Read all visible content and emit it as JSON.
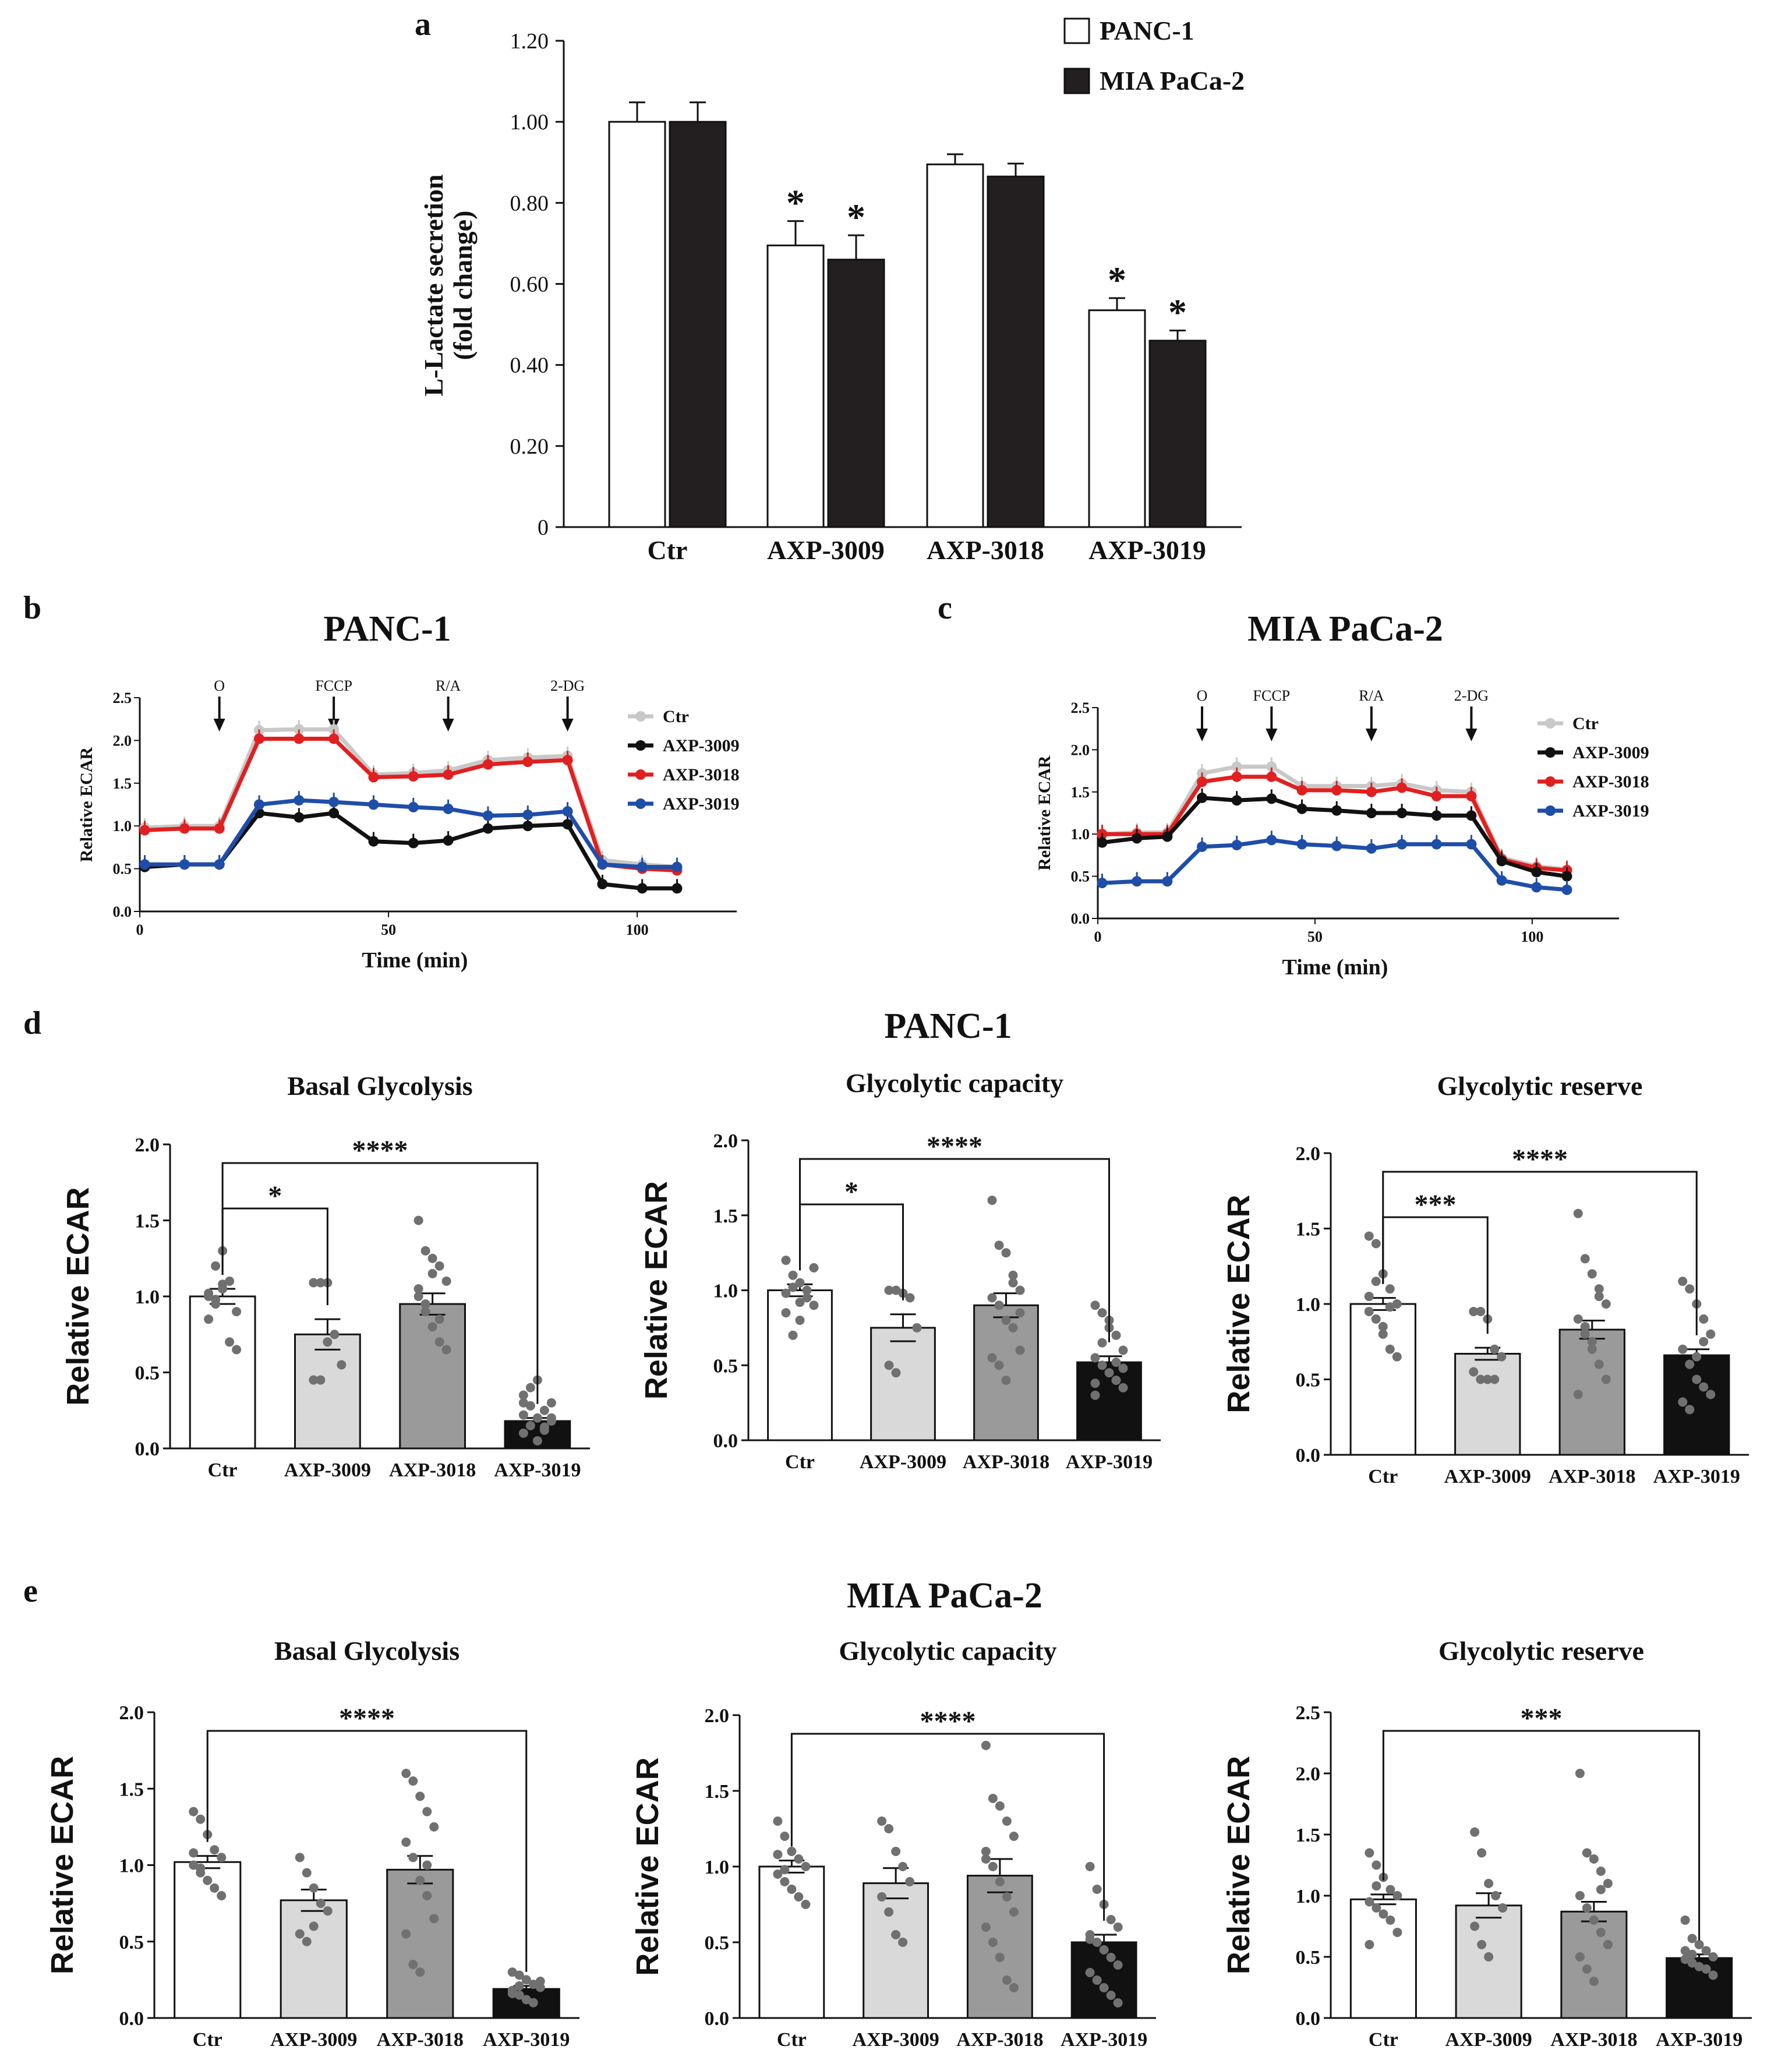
{
  "colors": {
    "white_bar": "#ffffff",
    "dark_bar": "#231f20",
    "ctr_line": "#c8c8c8",
    "axp3009_line": "#111111",
    "axp3018_line": "#e02020",
    "axp3019_line": "#1f4ea8",
    "light_grey": "#d9d9d9",
    "mid_grey": "#9a9a9a",
    "black": "#111111",
    "dot": "#707070"
  },
  "panel_letters": {
    "a": "a",
    "b": "b",
    "c": "c",
    "d": "d",
    "e": "e"
  },
  "chart_data": [
    {
      "id": "a",
      "type": "bar",
      "title": "",
      "ylabel": "L-Lactate secretion\n(fold change)",
      "ylabel_line1": "L-Lactate secretion",
      "ylabel_line2": "(fold change)",
      "ylim": [
        0,
        1.2
      ],
      "yticks": [
        "0",
        "0.20",
        "0.40",
        "0.60",
        "0.80",
        "1.00",
        "1.20"
      ],
      "categories": [
        "Ctr",
        "AXP-3009",
        "AXP-3018",
        "AXP-3019"
      ],
      "series": [
        {
          "name": "PANC-1",
          "values": [
            1.0,
            0.695,
            0.895,
            0.535
          ],
          "errors": [
            0.048,
            0.06,
            0.025,
            0.03
          ],
          "significant": [
            false,
            true,
            false,
            true
          ]
        },
        {
          "name": "MIA PaCa-2",
          "values": [
            1.0,
            0.66,
            0.865,
            0.46
          ],
          "errors": [
            0.048,
            0.06,
            0.032,
            0.025
          ],
          "significant": [
            false,
            true,
            false,
            true
          ]
        }
      ],
      "sig_symbol": "*",
      "legend_position": "top-right"
    },
    {
      "id": "b",
      "type": "line",
      "title": "PANC-1",
      "xlabel": "Time (min)",
      "ylabel": "Relative ECAR",
      "xlim": [
        0,
        120
      ],
      "ylim": [
        0,
        2.5
      ],
      "xticks": [
        "0",
        "50",
        "100"
      ],
      "yticks": [
        "0.0",
        "0.5",
        "1.0",
        "1.5",
        "2.0",
        "2.5"
      ],
      "injections": [
        {
          "label": "O",
          "x": 16
        },
        {
          "label": "FCCP",
          "x": 39
        },
        {
          "label": "R/A",
          "x": 62
        },
        {
          "label": "2-DG",
          "x": 86
        }
      ],
      "x": [
        1,
        9,
        16,
        24,
        32,
        39,
        47,
        55,
        62,
        70,
        78,
        86,
        93,
        101,
        108
      ],
      "series": [
        {
          "name": "Ctr",
          "values": [
            0.98,
            1.0,
            1.0,
            2.12,
            2.13,
            2.13,
            1.6,
            1.62,
            1.65,
            1.77,
            1.8,
            1.82,
            0.6,
            0.55,
            0.52
          ]
        },
        {
          "name": "AXP-3009",
          "values": [
            0.52,
            0.55,
            0.55,
            1.15,
            1.1,
            1.15,
            0.82,
            0.8,
            0.83,
            0.97,
            1.0,
            1.02,
            0.32,
            0.27,
            0.27
          ]
        },
        {
          "name": "AXP-3018",
          "values": [
            0.95,
            0.97,
            0.97,
            2.02,
            2.02,
            2.02,
            1.57,
            1.58,
            1.6,
            1.72,
            1.75,
            1.77,
            0.55,
            0.5,
            0.48
          ]
        },
        {
          "name": "AXP-3019",
          "values": [
            0.55,
            0.55,
            0.55,
            1.25,
            1.3,
            1.28,
            1.25,
            1.22,
            1.2,
            1.12,
            1.13,
            1.17,
            0.55,
            0.52,
            0.52
          ]
        }
      ],
      "legend_position": "right"
    },
    {
      "id": "c",
      "type": "line",
      "title": "MIA PaCa-2",
      "xlabel": "Time (min)",
      "ylabel": "Relative ECAR",
      "xlim": [
        0,
        120
      ],
      "ylim": [
        0,
        2.5
      ],
      "xticks": [
        "0",
        "50",
        "100"
      ],
      "yticks": [
        "0.0",
        "0.5",
        "1.0",
        "1.5",
        "2.0",
        "2.5"
      ],
      "injections": [
        {
          "label": "O",
          "x": 24
        },
        {
          "label": "FCCP",
          "x": 40
        },
        {
          "label": "R/A",
          "x": 63
        },
        {
          "label": "2-DG",
          "x": 86
        }
      ],
      "x": [
        1,
        9,
        16,
        24,
        32,
        40,
        47,
        55,
        63,
        70,
        78,
        86,
        93,
        101,
        108
      ],
      "series": [
        {
          "name": "Ctr",
          "values": [
            1.0,
            1.02,
            1.02,
            1.72,
            1.8,
            1.8,
            1.57,
            1.57,
            1.57,
            1.6,
            1.52,
            1.5,
            0.72,
            0.62,
            0.58
          ]
        },
        {
          "name": "AXP-3009",
          "values": [
            0.9,
            0.95,
            0.97,
            1.43,
            1.4,
            1.42,
            1.3,
            1.28,
            1.25,
            1.25,
            1.22,
            1.22,
            0.68,
            0.55,
            0.5
          ]
        },
        {
          "name": "AXP-3018",
          "values": [
            1.0,
            1.0,
            1.0,
            1.62,
            1.68,
            1.68,
            1.52,
            1.52,
            1.5,
            1.55,
            1.45,
            1.45,
            0.7,
            0.6,
            0.57
          ]
        },
        {
          "name": "AXP-3019",
          "values": [
            0.42,
            0.44,
            0.44,
            0.85,
            0.87,
            0.93,
            0.88,
            0.86,
            0.83,
            0.88,
            0.88,
            0.88,
            0.45,
            0.37,
            0.34
          ]
        }
      ],
      "legend_position": "right"
    },
    {
      "id": "d1",
      "type": "bar",
      "title": "Basal Glycolysis",
      "ylabel": "Relative ECAR",
      "ylim": [
        0,
        2.0
      ],
      "yticks": [
        "0.0",
        "0.5",
        "1.0",
        "1.5",
        "2.0"
      ],
      "categories": [
        "Ctr",
        "AXP-3009",
        "AXP-3018",
        "AXP-3019"
      ],
      "values": [
        1.0,
        0.75,
        0.95,
        0.18
      ],
      "errors": [
        0.05,
        0.1,
        0.07,
        0.02
      ],
      "points": [
        [
          1.0,
          0.95,
          1.05,
          1.1,
          0.9,
          0.85,
          1.2,
          1.3,
          0.7,
          0.65,
          1.02,
          0.98,
          1.08
        ],
        [
          1.09,
          1.09,
          1.09,
          0.75,
          0.55,
          0.45,
          0.45,
          0.7
        ],
        [
          1.5,
          1.3,
          1.25,
          1.2,
          1.1,
          1.0,
          0.9,
          0.8,
          0.7,
          0.65,
          1.05,
          0.95,
          1.15,
          0.85
        ],
        [
          0.1,
          0.15,
          0.2,
          0.25,
          0.3,
          0.35,
          0.4,
          0.45,
          0.12,
          0.18,
          0.22,
          0.28,
          0.05,
          0.14,
          0.2,
          0.3
        ]
      ],
      "significance": [
        {
          "from": 0,
          "to": 1,
          "label": "*"
        },
        {
          "from": 0,
          "to": 3,
          "label": "****"
        }
      ]
    },
    {
      "id": "d2",
      "type": "bar",
      "title": "Glycolytic capacity",
      "ylabel": "Relative ECAR",
      "ylim": [
        0,
        2.0
      ],
      "yticks": [
        "0.0",
        "0.5",
        "1.0",
        "1.5",
        "2.0"
      ],
      "categories": [
        "Ctr",
        "AXP-3009",
        "AXP-3018",
        "AXP-3019"
      ],
      "values": [
        1.0,
        0.75,
        0.9,
        0.52
      ],
      "errors": [
        0.04,
        0.09,
        0.08,
        0.04
      ],
      "points": [
        [
          1.2,
          1.1,
          1.05,
          0.95,
          0.9,
          0.85,
          0.7,
          0.8,
          1.0,
          1.15,
          0.98,
          1.02,
          0.92
        ],
        [
          1.0,
          1.0,
          0.98,
          0.95,
          0.75,
          0.5,
          0.45
        ],
        [
          1.6,
          1.3,
          1.25,
          1.1,
          1.0,
          0.95,
          0.9,
          0.8,
          0.75,
          0.6,
          0.55,
          0.5,
          0.4,
          1.05,
          0.85
        ],
        [
          0.9,
          0.85,
          0.8,
          0.7,
          0.6,
          0.55,
          0.5,
          0.45,
          0.4,
          0.35,
          0.3,
          0.65,
          0.75,
          0.52,
          0.48,
          0.38
        ]
      ],
      "significance": [
        {
          "from": 0,
          "to": 1,
          "label": "*"
        },
        {
          "from": 0,
          "to": 3,
          "label": "****"
        }
      ]
    },
    {
      "id": "d3",
      "type": "bar",
      "title": "Glycolytic reserve",
      "ylabel": "Relative ECAR",
      "ylim": [
        0,
        2.0
      ],
      "yticks": [
        "0.0",
        "0.5",
        "1.0",
        "1.5",
        "2.0"
      ],
      "categories": [
        "Ctr",
        "AXP-3009",
        "AXP-3018",
        "AXP-3019"
      ],
      "values": [
        1.0,
        0.67,
        0.83,
        0.66
      ],
      "errors": [
        0.04,
        0.04,
        0.06,
        0.04
      ],
      "points": [
        [
          1.45,
          1.4,
          1.2,
          1.1,
          1.0,
          0.95,
          0.9,
          0.8,
          0.7,
          0.65,
          1.05,
          1.15,
          0.85,
          0.98
        ],
        [
          0.95,
          0.95,
          0.9,
          0.7,
          0.65,
          0.55,
          0.5,
          0.5,
          0.5
        ],
        [
          1.6,
          1.3,
          1.2,
          1.1,
          1.0,
          0.9,
          0.8,
          0.7,
          0.6,
          0.5,
          0.4,
          0.85,
          0.75,
          1.05
        ],
        [
          1.15,
          1.1,
          1.0,
          0.9,
          0.8,
          0.7,
          0.6,
          0.5,
          0.45,
          0.4,
          0.35,
          0.3,
          0.65,
          0.75
        ]
      ],
      "significance": [
        {
          "from": 0,
          "to": 1,
          "label": "***"
        },
        {
          "from": 0,
          "to": 3,
          "label": "****"
        }
      ]
    },
    {
      "id": "e1",
      "type": "bar",
      "title": "Basal Glycolysis",
      "ylabel": "Relative ECAR",
      "ylim": [
        0,
        2.0
      ],
      "yticks": [
        "0.0",
        "0.5",
        "1.0",
        "1.5",
        "2.0"
      ],
      "categories": [
        "Ctr",
        "AXP-3009",
        "AXP-3018",
        "AXP-3019"
      ],
      "values": [
        1.02,
        0.77,
        0.97,
        0.19
      ],
      "errors": [
        0.04,
        0.07,
        0.09,
        0.02
      ],
      "points": [
        [
          1.35,
          1.3,
          1.2,
          1.1,
          1.05,
          1.0,
          0.95,
          0.9,
          0.85,
          0.8,
          1.08,
          0.98
        ],
        [
          1.05,
          0.95,
          0.85,
          0.75,
          0.7,
          0.55,
          0.5,
          0.6
        ],
        [
          1.6,
          1.55,
          1.45,
          1.35,
          1.25,
          1.15,
          1.05,
          0.9,
          0.8,
          0.65,
          0.55,
          0.35,
          0.3,
          1.0
        ],
        [
          0.3,
          0.28,
          0.25,
          0.22,
          0.2,
          0.18,
          0.15,
          0.12,
          0.1,
          0.24,
          0.16,
          0.21
        ]
      ],
      "significance": [
        {
          "from": 0,
          "to": 3,
          "label": "****"
        }
      ]
    },
    {
      "id": "e2",
      "type": "bar",
      "title": "Glycolytic capacity",
      "ylabel": "Relative ECAR",
      "ylim": [
        0,
        2.0
      ],
      "yticks": [
        "0.0",
        "0.5",
        "1.0",
        "1.5",
        "2.0"
      ],
      "categories": [
        "Ctr",
        "AXP-3009",
        "AXP-3018",
        "AXP-3019"
      ],
      "values": [
        1.0,
        0.89,
        0.94,
        0.5
      ],
      "errors": [
        0.04,
        0.1,
        0.11,
        0.05
      ],
      "points": [
        [
          1.3,
          1.2,
          1.1,
          1.05,
          1.0,
          0.95,
          0.9,
          0.85,
          0.8,
          0.75,
          1.08,
          0.98
        ],
        [
          1.3,
          1.25,
          1.1,
          1.0,
          0.9,
          0.8,
          0.7,
          0.55,
          0.5
        ],
        [
          1.8,
          1.45,
          1.4,
          1.3,
          1.2,
          1.1,
          1.0,
          0.9,
          0.8,
          0.7,
          0.6,
          0.5,
          0.4,
          0.25,
          0.2,
          1.05
        ],
        [
          1.0,
          0.85,
          0.75,
          0.65,
          0.6,
          0.55,
          0.5,
          0.45,
          0.4,
          0.35,
          0.3,
          0.25,
          0.2,
          0.15,
          0.1,
          0.52
        ]
      ],
      "significance": [
        {
          "from": 0,
          "to": 3,
          "label": "****"
        }
      ]
    },
    {
      "id": "e3",
      "type": "bar",
      "title": "Glycolytic reserve",
      "ylabel": "Relative ECAR",
      "ylim": [
        0,
        2.5
      ],
      "yticks": [
        "0.0",
        "0.5",
        "1.0",
        "1.5",
        "2.0",
        "2.5"
      ],
      "categories": [
        "Ctr",
        "AXP-3009",
        "AXP-3018",
        "AXP-3019"
      ],
      "values": [
        0.97,
        0.92,
        0.87,
        0.49
      ],
      "errors": [
        0.04,
        0.1,
        0.08,
        0.03
      ],
      "points": [
        [
          1.35,
          1.25,
          1.15,
          1.05,
          1.0,
          0.95,
          0.9,
          0.85,
          0.8,
          0.7,
          0.6,
          1.08
        ],
        [
          1.52,
          1.35,
          1.1,
          1.0,
          0.9,
          0.75,
          0.6,
          0.5
        ],
        [
          2.0,
          1.35,
          1.3,
          1.2,
          1.1,
          1.0,
          0.9,
          0.8,
          0.7,
          0.6,
          0.5,
          0.4,
          0.3,
          1.05
        ],
        [
          0.8,
          0.65,
          0.6,
          0.55,
          0.5,
          0.48,
          0.45,
          0.42,
          0.4,
          0.35,
          0.55,
          0.52
        ]
      ],
      "significance": [
        {
          "from": 0,
          "to": 3,
          "label": "***"
        }
      ]
    }
  ],
  "section_titles": {
    "d": "PANC-1",
    "e": "MIA PaCa-2"
  }
}
